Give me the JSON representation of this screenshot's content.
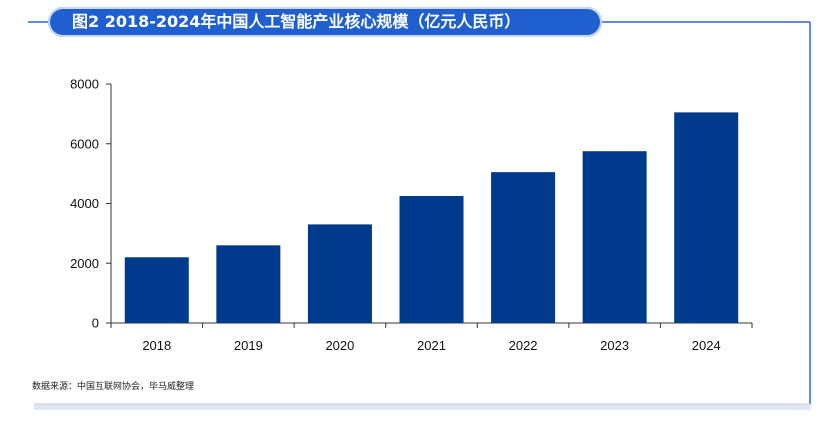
{
  "title": "图2 2018-2024年中国人工智能产业核心规模（亿元人民币）",
  "source": "数据来源：中国互联网协会，毕马威整理",
  "colors": {
    "bar": "#003a8c",
    "title_bg": "#1f5fd0",
    "border": "#2f66d0"
  },
  "chart_data": {
    "type": "bar",
    "title": "图2 2018-2024年中国人工智能产业核心规模（亿元人民币）",
    "xlabel": "",
    "ylabel": "",
    "categories": [
      "2018",
      "2019",
      "2020",
      "2021",
      "2022",
      "2023",
      "2024"
    ],
    "values": [
      2200,
      2600,
      3300,
      4250,
      5050,
      5750,
      7050
    ],
    "ylim": [
      0,
      8000
    ],
    "yticks": [
      "0",
      "2000",
      "4000",
      "6000",
      "8000"
    ],
    "grid": false,
    "legend": "none"
  }
}
